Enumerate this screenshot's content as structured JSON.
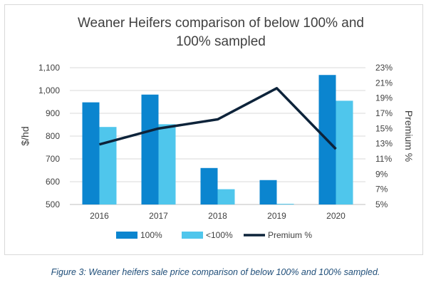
{
  "chart_data": {
    "type": "bar",
    "title": "Weaner Heifers comparison of below 100% and 100% sampled",
    "title_lines": [
      "Weaner Heifers comparison of below 100% and",
      "100% sampled"
    ],
    "categories": [
      "2016",
      "2017",
      "2018",
      "2019",
      "2020"
    ],
    "series": [
      {
        "name": "100%",
        "type": "bar",
        "axis": "left",
        "color": "#0b85cf",
        "values": [
          948,
          982,
          660,
          607,
          1068
        ]
      },
      {
        "name": "<100%",
        "type": "bar",
        "axis": "left",
        "color": "#4fc6ec",
        "values": [
          840,
          852,
          567,
          503,
          955
        ]
      },
      {
        "name": "Premium %",
        "type": "line",
        "axis": "right",
        "color": "#0d233a",
        "values": [
          12.9,
          15.0,
          16.2,
          20.3,
          12.3
        ]
      }
    ],
    "ylabel": "$/hd",
    "ylim": [
      500,
      1100
    ],
    "yticks": [
      "500",
      "600",
      "700",
      "800",
      "900",
      "1,000",
      "1,100"
    ],
    "y2label": "Premium %",
    "y2lim": [
      5,
      23
    ],
    "y2ticks": [
      "5%",
      "7%",
      "9%",
      "11%",
      "13%",
      "15%",
      "17%",
      "19%",
      "21%",
      "23%"
    ],
    "grid": true,
    "legend": "bottom"
  },
  "caption": "Figure 3: Weaner heifers sale price comparison of below 100% and 100% sampled."
}
